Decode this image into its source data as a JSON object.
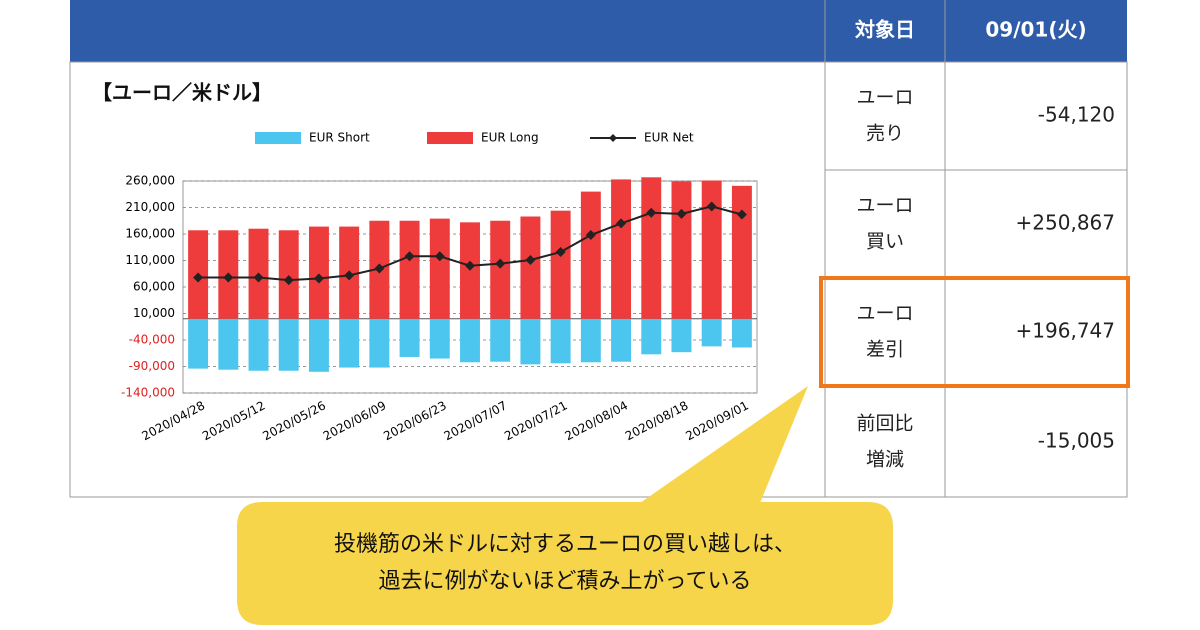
{
  "chart_data": {
    "type": "bar",
    "title": "【ユーロ／米ドル】",
    "categories": [
      "2020/04/28",
      null,
      "2020/05/12",
      null,
      "2020/05/26",
      null,
      "2020/06/09",
      null,
      "2020/06/23",
      null,
      "2020/07/07",
      null,
      "2020/07/21",
      null,
      "2020/08/04",
      null,
      "2020/08/18",
      null,
      "2020/09/01"
    ],
    "series": [
      {
        "name": "EUR Short",
        "type": "bar",
        "color": "#4cc6ee",
        "values": [
          -94000,
          -96000,
          -98000,
          -98000,
          -100000,
          -92000,
          -92000,
          -72000,
          -75000,
          -82000,
          -81000,
          -86000,
          -84000,
          -82000,
          -81000,
          -67000,
          -63000,
          -52000,
          -54120
        ]
      },
      {
        "name": "EUR Long",
        "type": "bar",
        "color": "#ee3b3b",
        "values": [
          167000,
          167000,
          170000,
          167000,
          174000,
          174000,
          185000,
          185000,
          189000,
          182000,
          185000,
          193000,
          204000,
          240000,
          263000,
          267000,
          259000,
          261000,
          250867
        ]
      },
      {
        "name": "EUR Net",
        "type": "line",
        "color": "#222222",
        "values": [
          78000,
          78000,
          78000,
          73000,
          76000,
          82000,
          95000,
          118000,
          118000,
          100000,
          104000,
          111000,
          126000,
          158000,
          180000,
          200000,
          198000,
          212000,
          196747
        ]
      }
    ],
    "ylim": [
      -140000,
      260000
    ],
    "yticks": [
      {
        "value": 260000,
        "label": "260,000"
      },
      {
        "value": 210000,
        "label": "210,000"
      },
      {
        "value": 160000,
        "label": "160,000"
      },
      {
        "value": 110000,
        "label": "110,000"
      },
      {
        "value": 60000,
        "label": "60,000"
      },
      {
        "value": 10000,
        "label": "10,000"
      },
      {
        "value": -40000,
        "label": "-40,000"
      },
      {
        "value": -90000,
        "label": "-90,000"
      },
      {
        "value": -140000,
        "label": "-140,000"
      }
    ],
    "grid": true
  },
  "table": {
    "header": [
      "対象日",
      "09/01(火)"
    ],
    "rows": [
      [
        [
          "ユーロ",
          "売り"
        ],
        "-54,120"
      ],
      [
        [
          "ユーロ",
          "買い"
        ],
        "+250,867"
      ],
      [
        [
          "ユーロ",
          "差引"
        ],
        "+196,747"
      ],
      [
        [
          "前回比",
          "増減"
        ],
        "-15,005"
      ]
    ]
  },
  "callout": [
    "投機筋の米ドルに対するユーロの買い越しは、",
    "過去に例がないほど積み上がっている"
  ]
}
